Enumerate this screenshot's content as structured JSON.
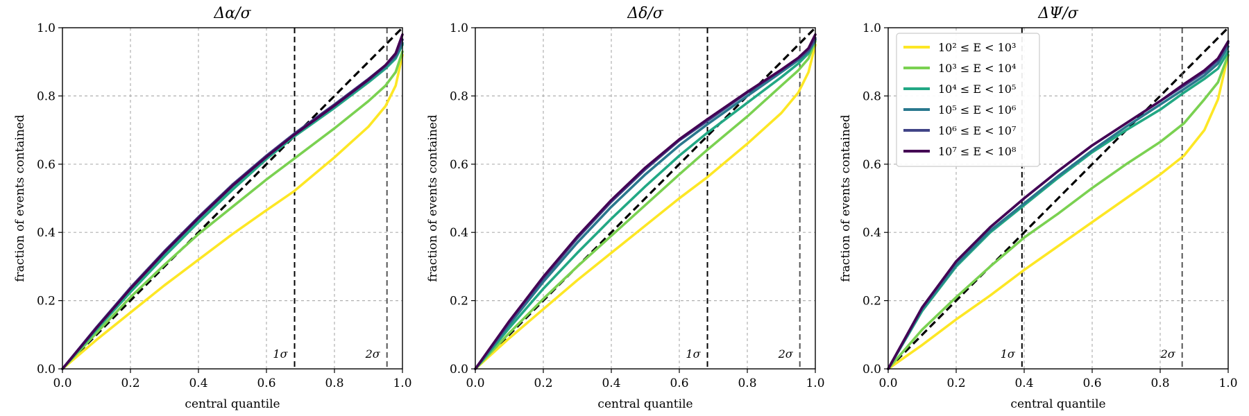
{
  "chart_data": [
    {
      "type": "line",
      "title": "Δα/σ",
      "xlabel": "central quantile",
      "ylabel": "fraction of events contained",
      "xlim": [
        0.0,
        1.0
      ],
      "ylim": [
        0.0,
        1.0
      ],
      "xticks": [
        "0.0",
        "0.2",
        "0.4",
        "0.6",
        "0.8",
        "1.0"
      ],
      "yticks": [
        "0.0",
        "0.2",
        "0.4",
        "0.6",
        "0.8",
        "1.0"
      ],
      "grid": true,
      "legend": null,
      "reference_line": {
        "style": "dashed",
        "color": "#000000",
        "x": [
          0.0,
          1.0
        ],
        "y": [
          0.0,
          1.0
        ]
      },
      "sigma_lines": [
        {
          "label": "1σ",
          "x": 0.6827,
          "color": "#000000"
        },
        {
          "label": "2σ",
          "x": 0.9545,
          "color": "#555555"
        }
      ],
      "series": [
        {
          "color": "#fde725",
          "x": [
            0,
            0.1,
            0.2,
            0.3,
            0.4,
            0.5,
            0.6,
            0.68,
            0.8,
            0.9,
            0.95,
            0.98,
            1.0
          ],
          "y": [
            0,
            0.085,
            0.165,
            0.245,
            0.32,
            0.395,
            0.465,
            0.52,
            0.62,
            0.71,
            0.77,
            0.83,
            0.92
          ]
        },
        {
          "color": "#7ad151",
          "x": [
            0,
            0.1,
            0.2,
            0.3,
            0.4,
            0.5,
            0.6,
            0.68,
            0.8,
            0.9,
            0.95,
            0.98,
            1.0
          ],
          "y": [
            0,
            0.105,
            0.21,
            0.305,
            0.395,
            0.475,
            0.555,
            0.615,
            0.705,
            0.785,
            0.83,
            0.87,
            0.93
          ]
        },
        {
          "color": "#22a884",
          "x": [
            0,
            0.1,
            0.2,
            0.3,
            0.4,
            0.5,
            0.6,
            0.68,
            0.8,
            0.9,
            0.95,
            0.98,
            1.0
          ],
          "y": [
            0,
            0.115,
            0.225,
            0.33,
            0.43,
            0.525,
            0.615,
            0.68,
            0.765,
            0.84,
            0.88,
            0.91,
            0.95
          ]
        },
        {
          "color": "#2a788e",
          "x": [
            0,
            0.1,
            0.2,
            0.3,
            0.4,
            0.5,
            0.6,
            0.68,
            0.8,
            0.9,
            0.95,
            0.98,
            1.0
          ],
          "y": [
            0,
            0.12,
            0.235,
            0.34,
            0.44,
            0.535,
            0.62,
            0.685,
            0.77,
            0.845,
            0.885,
            0.915,
            0.955
          ]
        },
        {
          "color": "#414487",
          "x": [
            0,
            0.1,
            0.2,
            0.3,
            0.4,
            0.5,
            0.6,
            0.68,
            0.8,
            0.9,
            0.95,
            0.98,
            1.0
          ],
          "y": [
            0,
            0.122,
            0.238,
            0.345,
            0.445,
            0.54,
            0.625,
            0.688,
            0.775,
            0.85,
            0.89,
            0.92,
            0.965
          ]
        },
        {
          "color": "#440154",
          "x": [
            0,
            0.1,
            0.2,
            0.3,
            0.4,
            0.5,
            0.6,
            0.68,
            0.8,
            0.9,
            0.95,
            0.98,
            1.0
          ],
          "y": [
            0,
            0.12,
            0.235,
            0.342,
            0.442,
            0.537,
            0.622,
            0.685,
            0.772,
            0.848,
            0.89,
            0.925,
            0.98
          ]
        }
      ]
    },
    {
      "type": "line",
      "title": "Δδ/σ",
      "xlabel": "central quantile",
      "ylabel": "fraction of events contained",
      "xlim": [
        0.0,
        1.0
      ],
      "ylim": [
        0.0,
        1.0
      ],
      "xticks": [
        "0.0",
        "0.2",
        "0.4",
        "0.6",
        "0.8",
        "1.0"
      ],
      "yticks": [
        "0.0",
        "0.2",
        "0.4",
        "0.6",
        "0.8",
        "1.0"
      ],
      "grid": true,
      "legend": null,
      "reference_line": {
        "style": "dashed",
        "color": "#000000",
        "x": [
          0.0,
          1.0
        ],
        "y": [
          0.0,
          1.0
        ]
      },
      "sigma_lines": [
        {
          "label": "1σ",
          "x": 0.6827,
          "color": "#000000"
        },
        {
          "label": "2σ",
          "x": 0.9545,
          "color": "#555555"
        }
      ],
      "series": [
        {
          "color": "#fde725",
          "x": [
            0,
            0.1,
            0.2,
            0.3,
            0.4,
            0.5,
            0.6,
            0.68,
            0.8,
            0.9,
            0.95,
            0.98,
            1.0
          ],
          "y": [
            0,
            0.09,
            0.175,
            0.26,
            0.34,
            0.42,
            0.5,
            0.56,
            0.66,
            0.75,
            0.81,
            0.87,
            0.95
          ]
        },
        {
          "color": "#7ad151",
          "x": [
            0,
            0.1,
            0.2,
            0.3,
            0.4,
            0.5,
            0.6,
            0.68,
            0.8,
            0.9,
            0.95,
            0.98,
            1.0
          ],
          "y": [
            0,
            0.105,
            0.205,
            0.3,
            0.39,
            0.48,
            0.57,
            0.64,
            0.74,
            0.83,
            0.875,
            0.91,
            0.96
          ]
        },
        {
          "color": "#22a884",
          "x": [
            0,
            0.1,
            0.2,
            0.3,
            0.4,
            0.5,
            0.6,
            0.68,
            0.8,
            0.9,
            0.95,
            0.98,
            1.0
          ],
          "y": [
            0,
            0.12,
            0.235,
            0.34,
            0.44,
            0.535,
            0.625,
            0.69,
            0.78,
            0.855,
            0.895,
            0.925,
            0.965
          ]
        },
        {
          "color": "#2a788e",
          "x": [
            0,
            0.1,
            0.2,
            0.3,
            0.4,
            0.5,
            0.6,
            0.68,
            0.8,
            0.9,
            0.95,
            0.98,
            1.0
          ],
          "y": [
            0,
            0.13,
            0.255,
            0.37,
            0.475,
            0.57,
            0.655,
            0.715,
            0.8,
            0.87,
            0.905,
            0.93,
            0.965
          ]
        },
        {
          "color": "#414487",
          "x": [
            0,
            0.1,
            0.2,
            0.3,
            0.4,
            0.5,
            0.6,
            0.68,
            0.8,
            0.9,
            0.95,
            0.98,
            1.0
          ],
          "y": [
            0,
            0.137,
            0.265,
            0.383,
            0.49,
            0.585,
            0.67,
            0.725,
            0.81,
            0.875,
            0.91,
            0.935,
            0.97
          ]
        },
        {
          "color": "#440154",
          "x": [
            0,
            0.1,
            0.2,
            0.3,
            0.4,
            0.5,
            0.6,
            0.68,
            0.8,
            0.9,
            0.95,
            0.98,
            1.0
          ],
          "y": [
            0,
            0.14,
            0.27,
            0.388,
            0.495,
            0.59,
            0.673,
            0.73,
            0.812,
            0.877,
            0.912,
            0.94,
            0.98
          ]
        }
      ]
    },
    {
      "type": "line",
      "title": "ΔΨ/σ",
      "xlabel": "central quantile",
      "ylabel": "fraction of events contained",
      "xlim": [
        0.0,
        1.0
      ],
      "ylim": [
        0.0,
        1.0
      ],
      "xticks": [
        "0.0",
        "0.2",
        "0.4",
        "0.6",
        "0.8",
        "1.0"
      ],
      "yticks": [
        "0.0",
        "0.2",
        "0.4",
        "0.6",
        "0.8",
        "1.0"
      ],
      "grid": true,
      "legend": "upper left",
      "reference_line": {
        "style": "dashed",
        "color": "#000000",
        "x": [
          0.0,
          1.0
        ],
        "y": [
          0.0,
          1.0
        ]
      },
      "sigma_lines": [
        {
          "label": "1σ",
          "x": 0.3935,
          "color": "#000000"
        },
        {
          "label": "2σ",
          "x": 0.8647,
          "color": "#555555"
        }
      ],
      "series": [
        {
          "name": "10² ≤ E < 10³",
          "color": "#fde725",
          "x": [
            0,
            0.1,
            0.2,
            0.3,
            0.4,
            0.5,
            0.6,
            0.7,
            0.8,
            0.87,
            0.93,
            0.97,
            1.0
          ],
          "y": [
            0,
            0.07,
            0.145,
            0.215,
            0.29,
            0.36,
            0.43,
            0.5,
            0.57,
            0.625,
            0.7,
            0.79,
            0.92
          ]
        },
        {
          "name": "10³ ≤ E < 10⁴",
          "color": "#7ad151",
          "x": [
            0,
            0.1,
            0.2,
            0.3,
            0.4,
            0.5,
            0.6,
            0.7,
            0.8,
            0.87,
            0.93,
            0.97,
            1.0
          ],
          "y": [
            0,
            0.115,
            0.21,
            0.3,
            0.385,
            0.455,
            0.53,
            0.6,
            0.665,
            0.72,
            0.79,
            0.84,
            0.92
          ]
        },
        {
          "name": "10⁴ ≤ E < 10⁵",
          "color": "#22a884",
          "x": [
            0,
            0.1,
            0.2,
            0.3,
            0.4,
            0.5,
            0.6,
            0.7,
            0.8,
            0.87,
            0.93,
            0.97,
            1.0
          ],
          "y": [
            0,
            0.17,
            0.3,
            0.4,
            0.48,
            0.56,
            0.635,
            0.7,
            0.76,
            0.81,
            0.85,
            0.88,
            0.93
          ]
        },
        {
          "name": "10⁵ ≤ E < 10⁶",
          "color": "#2a788e",
          "x": [
            0,
            0.1,
            0.2,
            0.3,
            0.4,
            0.5,
            0.6,
            0.7,
            0.8,
            0.87,
            0.93,
            0.97,
            1.0
          ],
          "y": [
            0,
            0.175,
            0.305,
            0.405,
            0.485,
            0.565,
            0.64,
            0.71,
            0.775,
            0.82,
            0.86,
            0.895,
            0.945
          ]
        },
        {
          "name": "10⁶ ≤ E < 10⁷",
          "color": "#414487",
          "x": [
            0,
            0.1,
            0.2,
            0.3,
            0.4,
            0.5,
            0.6,
            0.7,
            0.8,
            0.87,
            0.93,
            0.97,
            1.0
          ],
          "y": [
            0,
            0.18,
            0.315,
            0.415,
            0.5,
            0.58,
            0.655,
            0.72,
            0.785,
            0.83,
            0.87,
            0.905,
            0.955
          ]
        },
        {
          "name": "10⁷ ≤ E < 10⁸",
          "color": "#440154",
          "x": [
            0,
            0.1,
            0.2,
            0.3,
            0.4,
            0.5,
            0.6,
            0.7,
            0.8,
            0.87,
            0.93,
            0.97,
            1.0
          ],
          "y": [
            0,
            0.18,
            0.315,
            0.415,
            0.5,
            0.58,
            0.655,
            0.72,
            0.785,
            0.835,
            0.875,
            0.91,
            0.96
          ]
        }
      ]
    }
  ]
}
